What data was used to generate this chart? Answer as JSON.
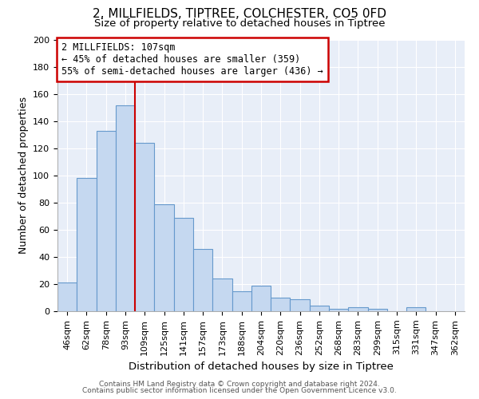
{
  "title_line1": "2, MILLFIELDS, TIPTREE, COLCHESTER, CO5 0FD",
  "title_line2": "Size of property relative to detached houses in Tiptree",
  "xlabel": "Distribution of detached houses by size in Tiptree",
  "ylabel": "Number of detached properties",
  "categories": [
    "46sqm",
    "62sqm",
    "78sqm",
    "93sqm",
    "109sqm",
    "125sqm",
    "141sqm",
    "157sqm",
    "173sqm",
    "188sqm",
    "204sqm",
    "220sqm",
    "236sqm",
    "252sqm",
    "268sqm",
    "283sqm",
    "299sqm",
    "315sqm",
    "331sqm",
    "347sqm",
    "362sqm"
  ],
  "values": [
    21,
    98,
    133,
    152,
    124,
    79,
    69,
    46,
    24,
    15,
    19,
    10,
    9,
    4,
    2,
    3,
    2,
    0,
    3,
    0,
    0
  ],
  "bar_color": "#c5d8f0",
  "bar_edge_color": "#6699cc",
  "vline_x_index": 4,
  "vline_color": "#cc0000",
  "annotation_text": "2 MILLFIELDS: 107sqm\n← 45% of detached houses are smaller (359)\n55% of semi-detached houses are larger (436) →",
  "annotation_box_color": "#cc0000",
  "ylim": [
    0,
    200
  ],
  "yticks": [
    0,
    20,
    40,
    60,
    80,
    100,
    120,
    140,
    160,
    180,
    200
  ],
  "footer_line1": "Contains HM Land Registry data © Crown copyright and database right 2024.",
  "footer_line2": "Contains public sector information licensed under the Open Government Licence v3.0.",
  "bg_color": "#e8eef8"
}
